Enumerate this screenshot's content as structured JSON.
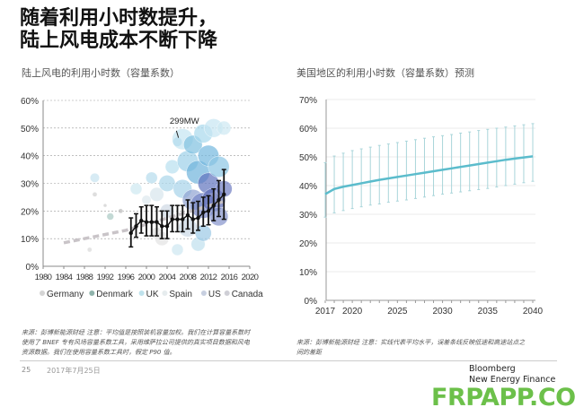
{
  "title": [
    "随着利用小时数提升，",
    "陆上风电成本不断下降"
  ],
  "chart_data": [
    {
      "type": "scatter",
      "title": "陆上风电的利用小时数（容量系数）",
      "xlim": [
        1980,
        2020
      ],
      "ylim": [
        0,
        60
      ],
      "xticks": [
        "1980",
        "1984",
        "1988",
        "1992",
        "1996",
        "2000",
        "2004",
        "2008",
        "2012",
        "2016",
        "2020"
      ],
      "yticks": [
        "0%",
        "10%",
        "20%",
        "30%",
        "40%",
        "50%",
        "60%"
      ],
      "grid": true,
      "legend_position": "bottom",
      "annotation": "299MW",
      "legend": [
        {
          "name": "Germany",
          "color": "#d4d4d4"
        },
        {
          "name": "Denmark",
          "color": "#8fb3ab"
        },
        {
          "name": "UK",
          "color": "#bfe2ec"
        },
        {
          "name": "Spain",
          "color": "#e6ecee"
        },
        {
          "name": "US",
          "color": "#c7cfe0"
        },
        {
          "name": "Canada",
          "color": "#cfcfd6"
        }
      ],
      "bubbles": [
        [
          1990,
          32,
          4,
          "#c6e3ef"
        ],
        [
          1990,
          26,
          2,
          "#d0d0d0"
        ],
        [
          1989,
          6,
          2,
          "#d8d8d8"
        ],
        [
          1993,
          18,
          3,
          "#a9c9c3"
        ],
        [
          1992,
          22,
          1.5,
          "#ccc"
        ],
        [
          1995,
          20,
          2,
          "#bbb"
        ],
        [
          1998,
          28,
          5,
          "#cde8f1"
        ],
        [
          2000,
          24,
          4,
          "#dde8ee"
        ],
        [
          2001,
          32,
          5,
          "#b5dcec"
        ],
        [
          2002,
          26,
          6,
          "#d7e6ec"
        ],
        [
          2002,
          12,
          5,
          "#dedede"
        ],
        [
          2003,
          10,
          6,
          "#e2e2e2"
        ],
        [
          2004,
          30,
          7,
          "#a9d6ea"
        ],
        [
          2004,
          20,
          6,
          "#cfd8e4"
        ],
        [
          2005,
          36,
          6,
          "#b8e0ef"
        ],
        [
          2006,
          45,
          4,
          "#8fc8e2"
        ],
        [
          2007,
          46,
          9,
          "#c5e6f2"
        ],
        [
          2007,
          28,
          8,
          "#a6d3e9"
        ],
        [
          2008,
          38,
          9,
          "#9dd0e8"
        ],
        [
          2008,
          14,
          8,
          "#cbd9e6"
        ],
        [
          2009,
          44,
          8,
          "#7fc0e0"
        ],
        [
          2009,
          24,
          9,
          "#8fa3d2"
        ],
        [
          2010,
          34,
          10,
          "#6fb4dc"
        ],
        [
          2010,
          8,
          6,
          "#bfe0ee"
        ],
        [
          2011,
          48,
          8,
          "#a8d8ec"
        ],
        [
          2011,
          22,
          11,
          "#7786c6"
        ],
        [
          2012,
          40,
          9,
          "#74b8de"
        ],
        [
          2012,
          30,
          9,
          "#5f74bd"
        ],
        [
          2013,
          50,
          8,
          "#c6e6f2"
        ],
        [
          2013,
          24,
          10,
          "#5d6bb8"
        ],
        [
          2014,
          36,
          9,
          "#8cc6e4"
        ],
        [
          2014,
          18,
          8,
          "#8593cc"
        ],
        [
          2015,
          50,
          6,
          "#cde8f2"
        ],
        [
          2015,
          28,
          7,
          "#6e7cc2"
        ],
        [
          2006,
          6,
          5,
          "#cde7f1"
        ],
        [
          2011,
          12,
          7,
          "#9bc9e5"
        ]
      ],
      "series": [
        {
          "type": "errorbar",
          "x": [
            1997,
            1998,
            1999,
            2000,
            2001,
            2002,
            2003,
            2004,
            2005,
            2006,
            2007,
            2008,
            2009,
            2010,
            2011,
            2012,
            2013,
            2014,
            2015
          ],
          "y": [
            12,
            14.5,
            16.5,
            16,
            16,
            16,
            14.5,
            14.5,
            17,
            17,
            17,
            18.5,
            17,
            17.5,
            19.5,
            20,
            22,
            24,
            26
          ],
          "low": [
            7,
            10.5,
            12,
            11,
            11,
            11,
            10,
            10,
            12.5,
            12.5,
            12.5,
            13.5,
            12,
            13,
            14.5,
            15,
            16.5,
            18,
            17
          ],
          "high": [
            17.5,
            19,
            21.5,
            22,
            22,
            21.5,
            20,
            20,
            22,
            22,
            22,
            24,
            23,
            23.5,
            25,
            25.5,
            28,
            31,
            35
          ]
        },
        {
          "type": "trend",
          "x": [
            1984,
            1996,
            2015
          ],
          "y": [
            8.5,
            13,
            23.5
          ]
        }
      ]
    },
    {
      "type": "line",
      "title": "美国地区的利用小时数（容量系数）预测",
      "xlim": [
        2017,
        2040
      ],
      "ylim": [
        0,
        70
      ],
      "xticks": [
        "2017",
        "2020",
        "2025",
        "2030",
        "2035",
        "2040"
      ],
      "yticks": [
        "0%",
        "10%",
        "20%",
        "30%",
        "40%",
        "50%",
        "60%",
        "70%"
      ],
      "grid": true,
      "x": [
        2017,
        2018,
        2019,
        2020,
        2021,
        2022,
        2023,
        2024,
        2025,
        2026,
        2027,
        2028,
        2029,
        2030,
        2031,
        2032,
        2033,
        2034,
        2035,
        2036,
        2037,
        2038,
        2039,
        2040
      ],
      "y": [
        37,
        38.8,
        39.6,
        40.2,
        40.8,
        41.4,
        42,
        42.5,
        43,
        43.5,
        44,
        44.5,
        45,
        45.5,
        46,
        46.5,
        47,
        47.5,
        48,
        48.5,
        49,
        49.4,
        49.8,
        50.2
      ],
      "high": [
        48,
        50.3,
        51.3,
        52.2,
        52.8,
        53.4,
        54,
        54.5,
        55,
        55.5,
        56,
        56.5,
        57,
        57.4,
        57.8,
        58.3,
        58.7,
        59.2,
        59.6,
        60,
        60.4,
        60.8,
        61.2,
        61.6
      ],
      "low": [
        29,
        30.5,
        31.3,
        32,
        32.6,
        33.2,
        33.6,
        34.2,
        34.6,
        35,
        35.5,
        36,
        36.5,
        37,
        37.4,
        37.8,
        38.2,
        38.6,
        39,
        39.5,
        40,
        40.5,
        41,
        41.5
      ],
      "color": "#5bbccc"
    }
  ],
  "notes": {
    "left": [
      "来源：彭博新能源财经 注意：平均值是按照装机容量加权。我们在计算容量系数时",
      "使用了 BNEF 专有风场容量系数工具，采用维萨拉公司提供的真实项目数据和风电",
      "资源数据。我们在使用容量系数工具时，假定 P90 值。"
    ],
    "right": [
      "来源：彭博新能源财经 注意：实线代表平均水平，误差条线反映低速和高速站点之",
      "间的差距"
    ]
  },
  "footer": {
    "page": "25",
    "date": "2017年7月25日",
    "logo": [
      "Bloomberg",
      "New Energy Finance"
    ],
    "watermark": "FRPAPP.COM"
  }
}
